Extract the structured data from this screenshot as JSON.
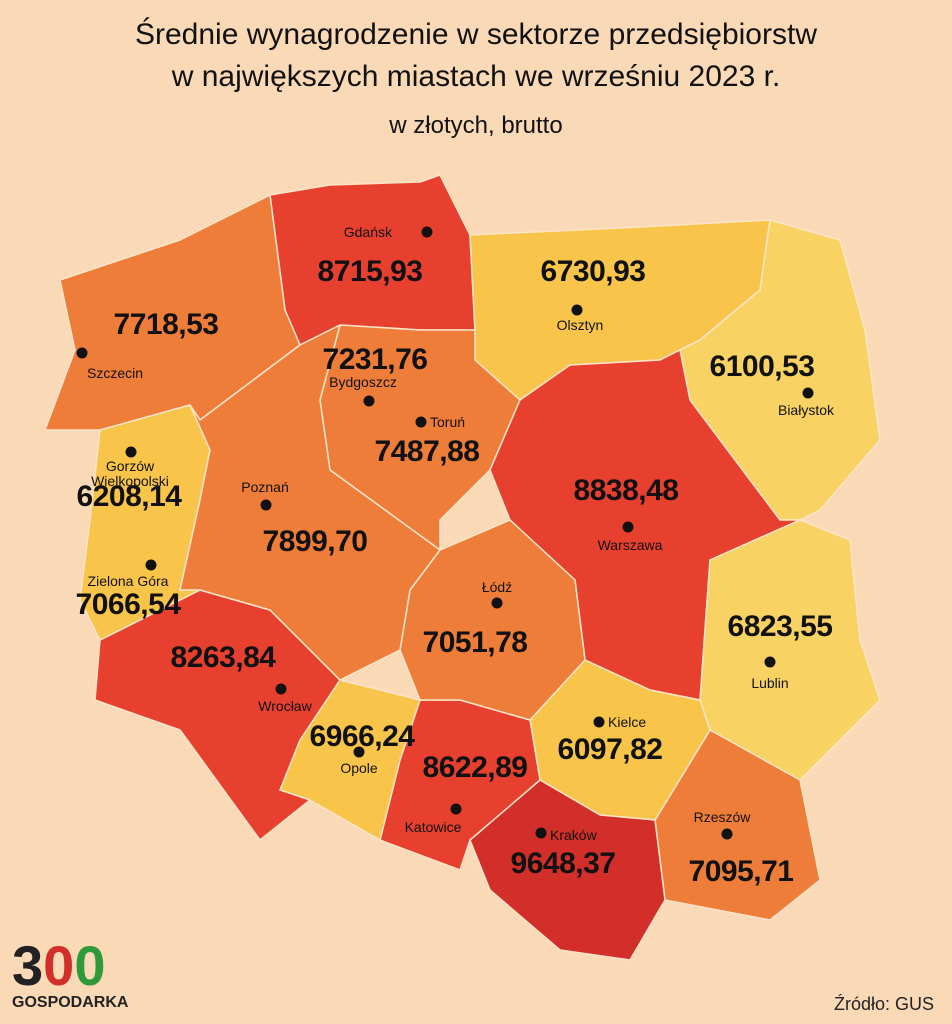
{
  "title": [
    "Średnie wynagrodzenie w sektorze przedsiębiorstw",
    "w największych miastach we wrześniu 2023 r."
  ],
  "subtitle": "w złotych, brutto",
  "regions": [
    {
      "city": "Gdańsk",
      "value": "8715,93",
      "color": "#e8402f"
    },
    {
      "city": "Olsztyn",
      "value": "6730,93",
      "color": "#f8c54a"
    },
    {
      "city": "Białystok",
      "value": "6100,53",
      "color": "#f9d264"
    },
    {
      "city": "Szczecin",
      "value": "7718,53",
      "color": "#ee7d3a"
    },
    {
      "city": "Bydgoszcz",
      "value": "7231,76",
      "color": "#ee7d3a"
    },
    {
      "city": "Toruń",
      "value": "7487,88",
      "color": "#ee7d3a"
    },
    {
      "city": "Warszawa",
      "value": "8838,48",
      "color": "#e8402f"
    },
    {
      "city": "Gorzów Wielkopolski",
      "value": "6208,14",
      "color": "#f8c54a"
    },
    {
      "city": "Poznań",
      "value": "7899,70",
      "color": "#ee7d3a"
    },
    {
      "city": "Zielona Góra",
      "value": "7066,54",
      "color": "#f3a046"
    },
    {
      "city": "Łódź",
      "value": "7051,78",
      "color": "#ee7d3a"
    },
    {
      "city": "Lublin",
      "value": "6823,55",
      "color": "#f9d264"
    },
    {
      "city": "Wrocław",
      "value": "8263,84",
      "color": "#e8402f"
    },
    {
      "city": "Opole",
      "value": "6966,24",
      "color": "#f8c54a"
    },
    {
      "city": "Kielce",
      "value": "6097,82",
      "color": "#f8c54a"
    },
    {
      "city": "Katowice",
      "value": "8622,89",
      "color": "#e8402f"
    },
    {
      "city": "Kraków",
      "value": "9648,37",
      "color": "#d32f2a"
    },
    {
      "city": "Rzeszów",
      "value": "7095,71",
      "color": "#ee7d3a"
    }
  ],
  "logo": {
    "digits": [
      "3",
      "0",
      "0"
    ],
    "name": "GOSPODARKA"
  },
  "source": "Źródło: GUS"
}
